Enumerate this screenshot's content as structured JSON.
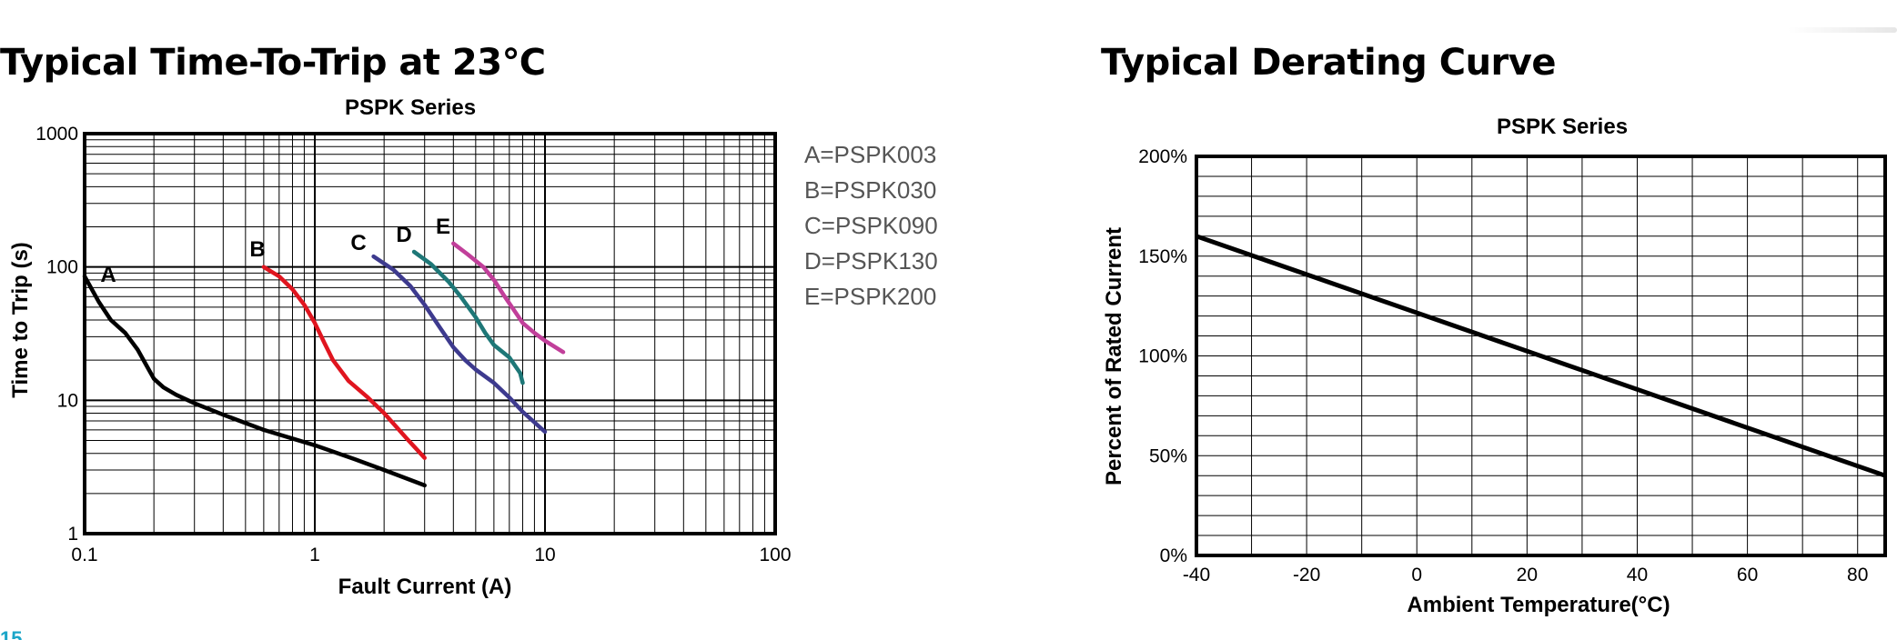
{
  "page": {
    "left_heading": "Typical Time-To-Trip at 23℃",
    "right_heading": "Typical Derating Curve",
    "page_number": "15"
  },
  "chart_data": [
    {
      "type": "line",
      "title": "PSPK Series",
      "xlabel": "Fault Current (A)",
      "ylabel": "Time to Trip (s)",
      "x_scale": "log",
      "y_scale": "log",
      "xlim": [
        0.1,
        100
      ],
      "ylim": [
        1,
        1000
      ],
      "x_ticks": [
        "0.1",
        "1",
        "10",
        "100"
      ],
      "y_ticks": [
        "1",
        "10",
        "100",
        "1000"
      ],
      "grid": true,
      "legend_position": "right",
      "legend": [
        "A=PSPK003",
        "B=PSPK030",
        "C=PSPK090",
        "D=PSPK130",
        "E=PSPK200"
      ],
      "series": [
        {
          "name": "A",
          "color": "#000000",
          "x": [
            0.1,
            0.115,
            0.13,
            0.15,
            0.17,
            0.19,
            0.2,
            0.22,
            0.25,
            0.3,
            0.4,
            0.6,
            1.0,
            1.5,
            2.0,
            3.0
          ],
          "y": [
            85,
            55,
            40,
            32,
            24,
            17,
            14.5,
            12.5,
            11,
            9.5,
            7.8,
            6.0,
            4.6,
            3.6,
            3.0,
            2.3
          ]
        },
        {
          "name": "B",
          "color": "#e0151f",
          "x": [
            0.6,
            0.7,
            0.8,
            0.9,
            1.0,
            1.1,
            1.2,
            1.4,
            1.7,
            2.0,
            2.5,
            3.0
          ],
          "y": [
            100,
            85,
            68,
            52,
            38,
            27,
            20,
            14,
            10.5,
            8.0,
            5.2,
            3.7
          ]
        },
        {
          "name": "C",
          "color": "#3d3a8e",
          "x": [
            1.8,
            2.2,
            2.6,
            3.0,
            3.5,
            4.0,
            4.5,
            5.0,
            6.0,
            7.0,
            8.0,
            10.0
          ],
          "y": [
            120,
            95,
            72,
            52,
            35,
            25,
            20,
            17,
            13.5,
            10.5,
            8.2,
            5.8
          ]
        },
        {
          "name": "D",
          "color": "#1e7777",
          "x": [
            2.7,
            3.2,
            3.8,
            4.3,
            5.0,
            5.5,
            6.0,
            7.0,
            7.8,
            8.0
          ],
          "y": [
            130,
            105,
            78,
            60,
            42,
            32,
            26,
            21,
            16,
            13.5
          ]
        },
        {
          "name": "E",
          "color": "#c13f9a",
          "x": [
            4.0,
            4.6,
            5.4,
            6.0,
            6.6,
            7.3,
            8.0,
            9.0,
            10.0,
            12.0
          ],
          "y": [
            150,
            125,
            100,
            80,
            62,
            48,
            38,
            32,
            28,
            23
          ]
        }
      ]
    },
    {
      "type": "line",
      "title": "PSPK Series",
      "xlabel": "Ambient Temperature(°C)",
      "ylabel": "Percent of Rated Current",
      "xlim": [
        -40,
        85
      ],
      "ylim": [
        0,
        200
      ],
      "x_ticks": [
        "-40",
        "-20",
        "0",
        "20",
        "40",
        "60",
        "80"
      ],
      "y_ticks": [
        "0%",
        "50%",
        "100%",
        "150%",
        "200%"
      ],
      "grid": true,
      "series": [
        {
          "color": "#000000",
          "x": [
            -40,
            85
          ],
          "y": [
            160,
            40
          ]
        }
      ]
    }
  ]
}
